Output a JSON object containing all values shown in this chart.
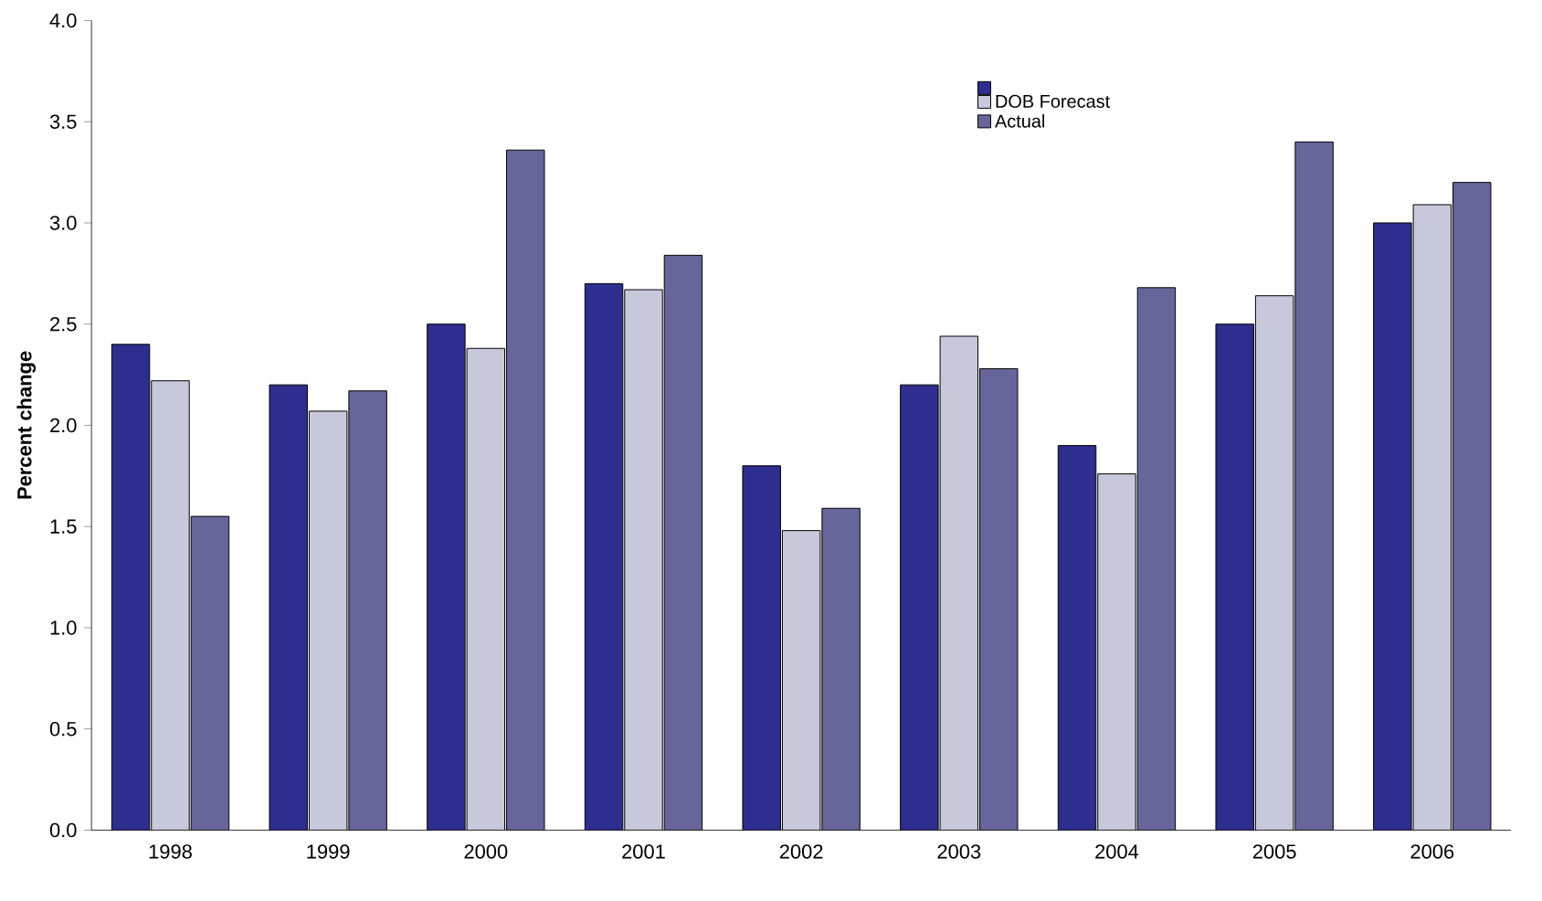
{
  "chart_data": {
    "type": "bar",
    "ylabel": "Percent change",
    "categories": [
      "1998",
      "1999",
      "2000",
      "2001",
      "2002",
      "2003",
      "2004",
      "2005",
      "2006"
    ],
    "series": [
      {
        "color": "#2e2e8f",
        "values": [
          2.4,
          2.2,
          2.5,
          2.7,
          1.8,
          2.2,
          1.9,
          2.5,
          3.0
        ]
      },
      {
        "name": "DOB Forecast",
        "color": "#c8c8dc",
        "values": [
          2.22,
          2.07,
          2.38,
          2.67,
          1.48,
          2.44,
          1.76,
          2.64,
          3.09
        ]
      },
      {
        "name": "Actual",
        "color": "#66669a",
        "values": [
          1.55,
          2.17,
          3.36,
          2.84,
          1.59,
          2.28,
          2.68,
          3.4,
          3.2
        ]
      }
    ],
    "ylim": [
      0,
      4
    ],
    "yticks": [
      {
        "value": 0,
        "label": "0.0"
      },
      {
        "value": 0.5,
        "label": "0.5"
      },
      {
        "value": 1,
        "label": "1.0"
      },
      {
        "value": 1.5,
        "label": "1.5"
      },
      {
        "value": 2,
        "label": "2.0"
      },
      {
        "value": 2.5,
        "label": "2.5"
      },
      {
        "value": 3,
        "label": "3.0"
      },
      {
        "value": 3.5,
        "label": "3.5"
      },
      {
        "value": 4,
        "label": "4.0"
      }
    ],
    "grid": false,
    "legend": "top"
  }
}
